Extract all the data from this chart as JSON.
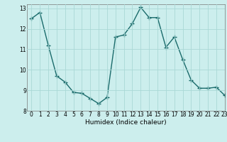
{
  "x": [
    0,
    1,
    2,
    3,
    4,
    5,
    6,
    7,
    8,
    9,
    10,
    11,
    12,
    13,
    14,
    15,
    16,
    17,
    18,
    19,
    20,
    21,
    22,
    23
  ],
  "y": [
    12.5,
    12.8,
    11.2,
    9.7,
    9.4,
    8.9,
    8.85,
    8.6,
    8.35,
    8.65,
    11.6,
    11.7,
    12.25,
    13.05,
    12.55,
    12.55,
    11.1,
    11.6,
    10.5,
    9.5,
    9.1,
    9.1,
    9.15,
    8.75
  ],
  "line_color": "#1a6b6b",
  "marker": "+",
  "marker_size": 4,
  "bg_color": "#cceeed",
  "grid_color": "#aad8d6",
  "xlabel": "Humidex (Indice chaleur)",
  "xlim": [
    -0.5,
    23
  ],
  "ylim": [
    8,
    13.2
  ],
  "yticks": [
    8,
    9,
    10,
    11,
    12,
    13
  ],
  "xticks": [
    0,
    1,
    2,
    3,
    4,
    5,
    6,
    7,
    8,
    9,
    10,
    11,
    12,
    13,
    14,
    15,
    16,
    17,
    18,
    19,
    20,
    21,
    22,
    23
  ],
  "tick_fontsize": 5.5,
  "xlabel_fontsize": 6.5,
  "linewidth": 1.0
}
